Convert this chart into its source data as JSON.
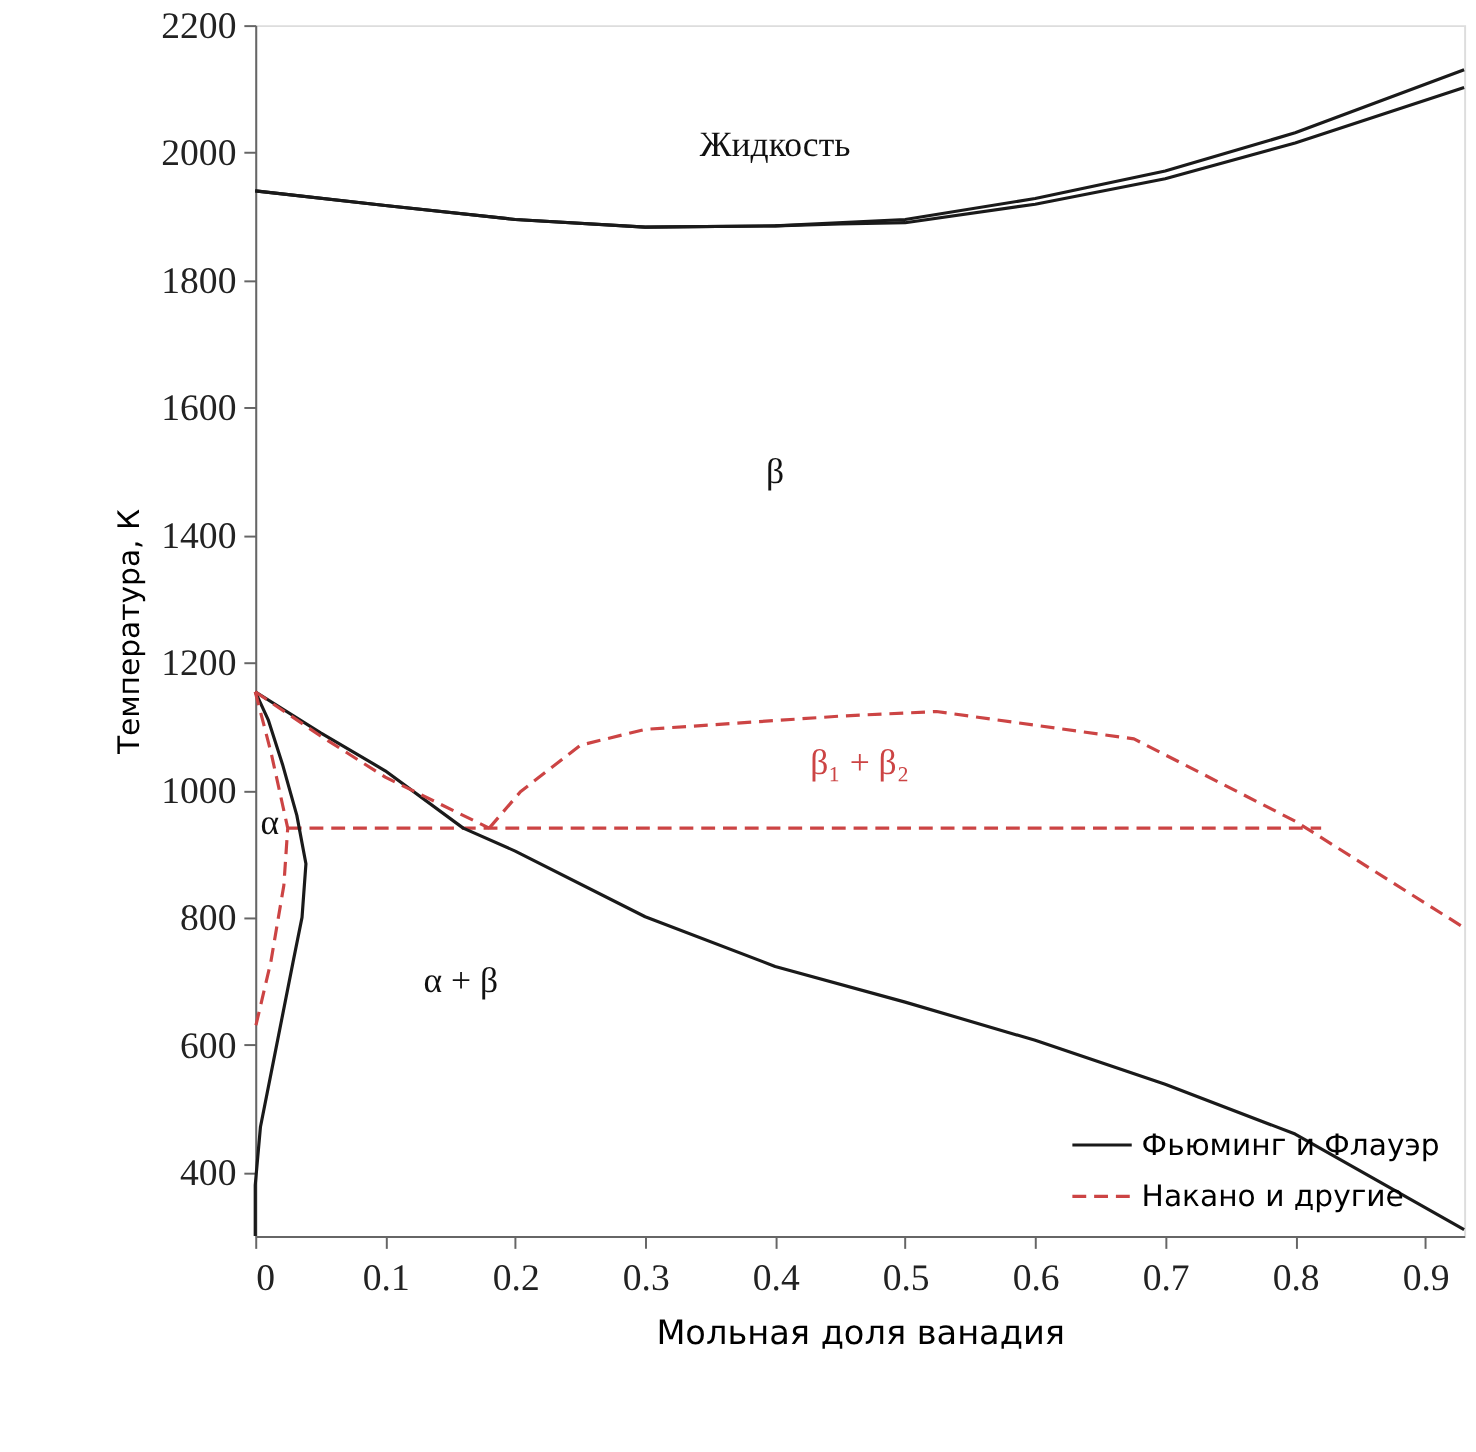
{
  "chart_data": {
    "type": "line",
    "xlabel": "Мольная доля ванадия",
    "ylabel": "Температура, К",
    "xlim": [
      0,
      0.93
    ],
    "xticks": [
      0,
      0.1,
      0.2,
      0.3,
      0.4,
      0.5,
      0.6,
      0.7,
      0.8,
      0.9
    ],
    "ylim": [
      300,
      2200
    ],
    "yticks": [
      400,
      600,
      800,
      1000,
      1200,
      1400,
      1600,
      1800,
      2000,
      2200
    ],
    "grid": false,
    "legend": "bottom right",
    "series": [
      {
        "name": "Фьюминг и Флауэр",
        "color": "#1a1a1a",
        "line_style": "solid",
        "x": [
          0,
          0.1,
          0.2,
          0.3,
          0.4,
          0.5,
          0.6,
          0.7,
          0.8,
          0.93
        ],
        "values": [
          1940,
          1917,
          1895,
          1883,
          1885,
          1895,
          1928,
          1971,
          2031,
          2130
        ]
      },
      {
        "name": "Накано и другие",
        "color": "#cc4444",
        "line_style": "dashed",
        "x": [
          0.025,
          0.82
        ],
        "values": [
          940,
          940
        ]
      },
      {
        "color": "#1a1a1a",
        "line_style": "solid",
        "x": [
          0,
          0.1,
          0.2,
          0.3,
          0.4,
          0.45,
          0.5,
          0.6,
          0.7,
          0.8,
          0.93
        ],
        "values": [
          1940,
          1917,
          1895,
          1883,
          1885,
          1888,
          1890,
          1919,
          1959,
          2015,
          2102
        ]
      },
      {
        "color": "#1a1a1a",
        "line_style": "solid",
        "x": [
          0,
          0.05,
          0.1,
          0.16,
          0.2,
          0.3,
          0.4,
          0.5,
          0.6,
          0.7,
          0.8,
          0.93
        ],
        "values": [
          1154,
          1090,
          1030,
          940,
          904,
          801,
          723,
          667,
          607,
          538,
          460,
          310
        ]
      },
      {
        "color": "#1a1a1a",
        "line_style": "solid",
        "x": [
          0,
          0.01,
          0.021,
          0.032,
          0.039,
          0.036,
          0.029,
          0.014,
          0.004,
          0,
          0
        ],
        "values": [
          1154,
          1110,
          1040,
          960,
          884,
          800,
          729,
          574,
          471,
          380,
          300
        ]
      },
      {
        "color": "#cc4444",
        "line_style": "dashed",
        "x": [
          0,
          0.012,
          0.025,
          0.022,
          0.012,
          0
        ],
        "values": [
          1154,
          1060,
          940,
          850,
          730,
          626
        ]
      },
      {
        "color": "#cc4444",
        "line_style": "dashed",
        "x": [
          0,
          0.05,
          0.1,
          0.18
        ],
        "values": [
          1154,
          1085,
          1020,
          940
        ]
      },
      {
        "color": "#cc4444",
        "line_style": "dashed",
        "x": [
          0.18,
          0.204,
          0.25,
          0.3,
          0.452,
          0.524,
          0.676,
          0.8,
          0.929
        ],
        "values": [
          940,
          997,
          1070,
          1095,
          1116,
          1123,
          1080,
          951,
          785
        ]
      }
    ],
    "annotations": [
      "Жидкость",
      "β",
      "β₁ + β₂",
      "α",
      "α + β"
    ]
  }
}
